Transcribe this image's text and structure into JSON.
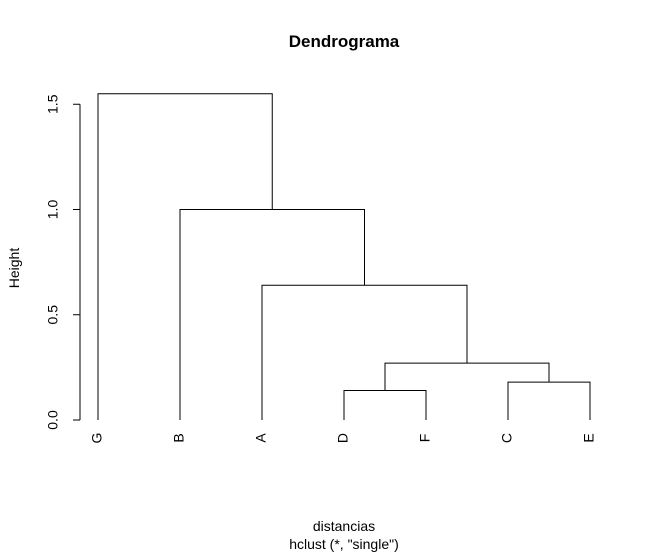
{
  "chart_data": {
    "type": "dendrogram",
    "title": "Dendrograma",
    "ylabel": "Height",
    "xlabel": "distancias",
    "sublabel": "hclust (*, \"single\")",
    "ylim": [
      0,
      1.55
    ],
    "yticks": [
      0.0,
      0.5,
      1.0,
      1.5
    ],
    "ytick_labels": [
      "0.0",
      "0.5",
      "1.0",
      "1.5"
    ],
    "leaf_order": [
      "G",
      "B",
      "A",
      "D",
      "F",
      "C",
      "E"
    ],
    "merges": [
      {
        "left": "D",
        "right": "F",
        "height": 0.14
      },
      {
        "left": "C",
        "right": "E",
        "height": 0.18
      },
      {
        "left": "D-F",
        "right": "C-E",
        "height": 0.27
      },
      {
        "left": "A",
        "right": "D-F-C-E",
        "height": 0.64
      },
      {
        "left": "B",
        "right": "A-D-F-C-E",
        "height": 1.0
      },
      {
        "left": "G",
        "right": "B-A-D-F-C-E",
        "height": 1.55
      }
    ],
    "line_color": "#000000"
  }
}
